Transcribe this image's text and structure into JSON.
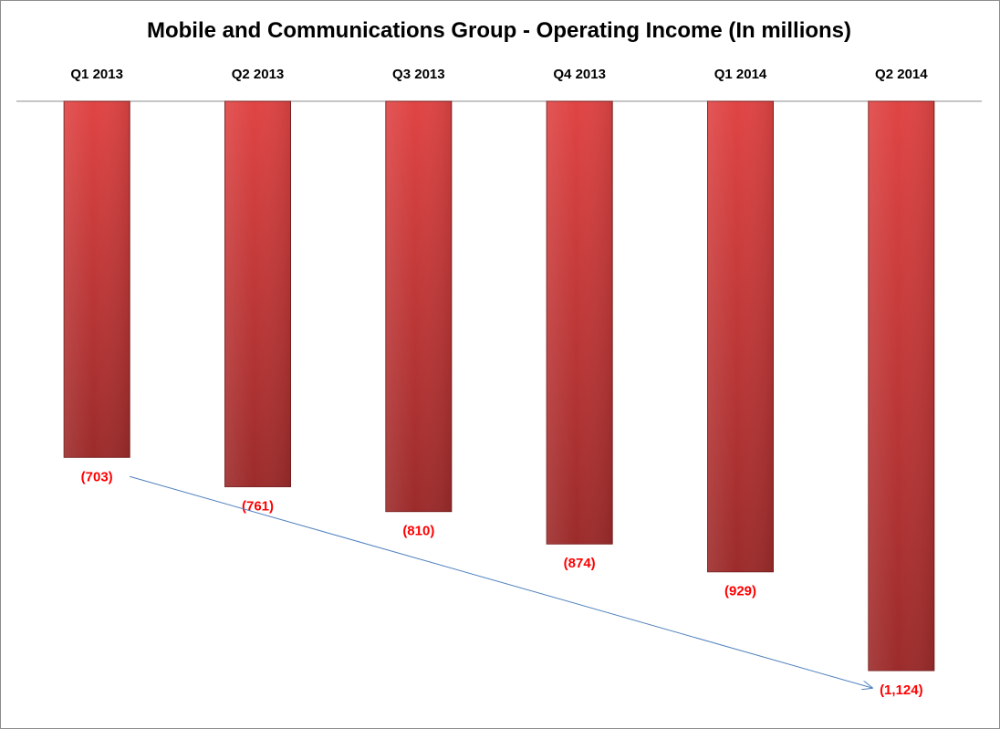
{
  "chart_data": {
    "type": "bar",
    "title": "Mobile and Communications Group - Operating Income (In millions)",
    "xlabel": "",
    "ylabel": "",
    "categories": [
      "Q1 2013",
      "Q2 2013",
      "Q3 2013",
      "Q4 2013",
      "Q1 2014",
      "Q2 2014"
    ],
    "values": [
      -703,
      -761,
      -810,
      -874,
      -929,
      -1124
    ],
    "data_labels": [
      "(703)",
      "(761)",
      "(810)",
      "(874)",
      "(929)",
      "(1,124)"
    ],
    "ylim": [
      -1124,
      0
    ],
    "category_axis_position": "top",
    "grid": false,
    "legend": "none",
    "annotations": [
      {
        "type": "trend-arrow",
        "from_category": "Q1 2013",
        "to_category": "Q2 2014"
      }
    ]
  },
  "colors": {
    "bar_top": "#e04444",
    "bar_bottom": "#9c2b2b",
    "bar_outline": "#7a1f1f",
    "data_label": "#ff0000",
    "trend_arrow": "#4f81bd",
    "axis_line": "#8c8c8c"
  }
}
